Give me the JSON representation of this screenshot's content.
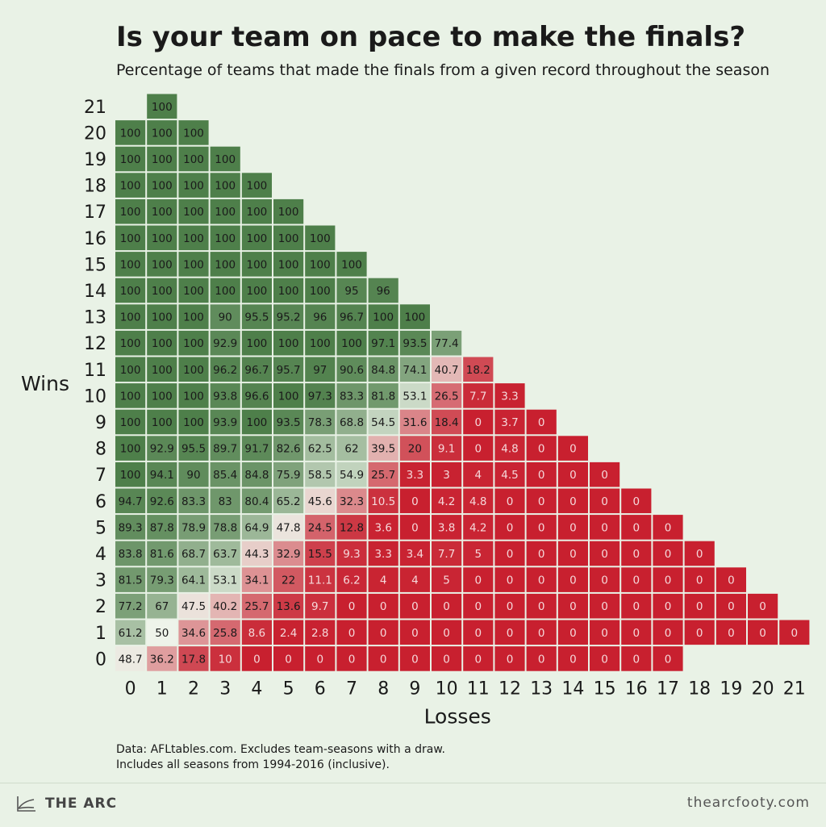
{
  "header": {
    "title": "Is your team on pace to make the finals?",
    "subtitle": "Percentage of teams that made the finals from a given record throughout the season"
  },
  "notes": {
    "line1": "Data: AFLtables.com. Excludes team-seasons with a draw.",
    "line2": "Includes all seasons from 1994-2016 (inclusive)."
  },
  "footer": {
    "brand": "THE ARC",
    "site": "thearcfooty.com",
    "logo_icon": "chart-line-icon"
  },
  "chart_data": {
    "type": "heatmap",
    "xlabel": "Losses",
    "ylabel": "Wins",
    "x_categories": [
      "0",
      "1",
      "2",
      "3",
      "4",
      "5",
      "6",
      "7",
      "8",
      "9",
      "10",
      "11",
      "12",
      "13",
      "14",
      "15",
      "16",
      "17",
      "18",
      "19",
      "20",
      "21"
    ],
    "y_categories": [
      "0",
      "1",
      "2",
      "3",
      "4",
      "5",
      "6",
      "7",
      "8",
      "9",
      "10",
      "11",
      "12",
      "13",
      "14",
      "15",
      "16",
      "17",
      "18",
      "19",
      "20",
      "21"
    ],
    "color_scale": {
      "low": "#c8202f",
      "mid": "#eef3ea",
      "high": "#4e7f4a"
    },
    "rows": [
      {
        "wins": 0,
        "values": [
          "48.7",
          "36.2",
          "17.8",
          "10",
          "0",
          "0",
          "0",
          "0",
          "0",
          "0",
          "0",
          "0",
          "0",
          "0",
          "0",
          "0",
          "0",
          "0"
        ]
      },
      {
        "wins": 1,
        "values": [
          "61.2",
          "50",
          "34.6",
          "25.8",
          "8.6",
          "2.4",
          "2.8",
          "0",
          "0",
          "0",
          "0",
          "0",
          "0",
          "0",
          "0",
          "0",
          "0",
          "0",
          "0",
          "0",
          "0",
          "0"
        ]
      },
      {
        "wins": 2,
        "values": [
          "77.2",
          "67",
          "47.5",
          "40.2",
          "25.7",
          "13.6",
          "9.7",
          "0",
          "0",
          "0",
          "0",
          "0",
          "0",
          "0",
          "0",
          "0",
          "0",
          "0",
          "0",
          "0",
          "0"
        ]
      },
      {
        "wins": 3,
        "values": [
          "81.5",
          "79.3",
          "64.1",
          "53.1",
          "34.1",
          "22",
          "11.1",
          "6.2",
          "4",
          "4",
          "5",
          "0",
          "0",
          "0",
          "0",
          "0",
          "0",
          "0",
          "0",
          "0"
        ]
      },
      {
        "wins": 4,
        "values": [
          "83.8",
          "81.6",
          "68.7",
          "63.7",
          "44.3",
          "32.9",
          "15.5",
          "9.3",
          "3.3",
          "3.4",
          "7.7",
          "5",
          "0",
          "0",
          "0",
          "0",
          "0",
          "0",
          "0"
        ]
      },
      {
        "wins": 5,
        "values": [
          "89.3",
          "87.8",
          "78.9",
          "78.8",
          "64.9",
          "47.8",
          "24.5",
          "12.8",
          "3.6",
          "0",
          "3.8",
          "4.2",
          "0",
          "0",
          "0",
          "0",
          "0",
          "0"
        ]
      },
      {
        "wins": 6,
        "values": [
          "94.7",
          "92.6",
          "83.3",
          "83",
          "80.4",
          "65.2",
          "45.6",
          "32.3",
          "10.5",
          "0",
          "4.2",
          "4.8",
          "0",
          "0",
          "0",
          "0",
          "0"
        ]
      },
      {
        "wins": 7,
        "values": [
          "100",
          "94.1",
          "90",
          "85.4",
          "84.8",
          "75.9",
          "58.5",
          "54.9",
          "25.7",
          "3.3",
          "3",
          "4",
          "4.5",
          "0",
          "0",
          "0"
        ]
      },
      {
        "wins": 8,
        "values": [
          "100",
          "92.9",
          "95.5",
          "89.7",
          "91.7",
          "82.6",
          "62.5",
          "62",
          "39.5",
          "20",
          "9.1",
          "0",
          "4.8",
          "0",
          "0"
        ]
      },
      {
        "wins": 9,
        "values": [
          "100",
          "100",
          "100",
          "93.9",
          "100",
          "93.5",
          "78.3",
          "68.8",
          "54.5",
          "31.6",
          "18.4",
          "0",
          "3.7",
          "0"
        ]
      },
      {
        "wins": 10,
        "values": [
          "100",
          "100",
          "100",
          "93.8",
          "96.6",
          "100",
          "97.3",
          "83.3",
          "81.8",
          "53.1",
          "26.5",
          "7.7",
          "3.3"
        ]
      },
      {
        "wins": 11,
        "values": [
          "100",
          "100",
          "100",
          "96.2",
          "96.7",
          "95.7",
          "97",
          "90.6",
          "84.8",
          "74.1",
          "40.7",
          "18.2"
        ]
      },
      {
        "wins": 12,
        "values": [
          "100",
          "100",
          "100",
          "92.9",
          "100",
          "100",
          "100",
          "100",
          "97.1",
          "93.5",
          "77.4"
        ]
      },
      {
        "wins": 13,
        "values": [
          "100",
          "100",
          "100",
          "90",
          "95.5",
          "95.2",
          "96",
          "96.7",
          "100",
          "100"
        ]
      },
      {
        "wins": 14,
        "values": [
          "100",
          "100",
          "100",
          "100",
          "100",
          "100",
          "100",
          "95",
          "96"
        ]
      },
      {
        "wins": 15,
        "values": [
          "100",
          "100",
          "100",
          "100",
          "100",
          "100",
          "100",
          "100"
        ]
      },
      {
        "wins": 16,
        "values": [
          "100",
          "100",
          "100",
          "100",
          "100",
          "100",
          "100"
        ]
      },
      {
        "wins": 17,
        "values": [
          "100",
          "100",
          "100",
          "100",
          "100",
          "100"
        ]
      },
      {
        "wins": 18,
        "values": [
          "100",
          "100",
          "100",
          "100",
          "100"
        ]
      },
      {
        "wins": 19,
        "values": [
          "100",
          "100",
          "100",
          "100"
        ]
      },
      {
        "wins": 20,
        "values": [
          "100",
          "100",
          "100"
        ]
      },
      {
        "wins": 21,
        "values": [
          null,
          "100"
        ]
      }
    ]
  }
}
